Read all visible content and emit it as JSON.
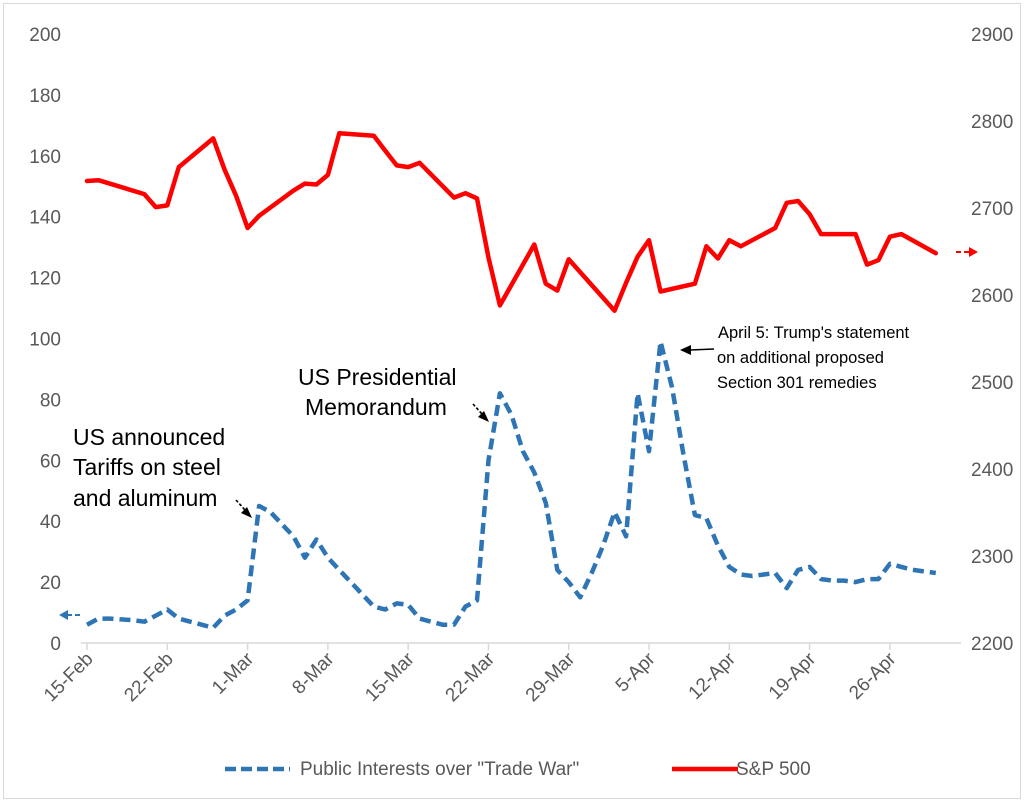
{
  "chart_data": {
    "type": "line",
    "title": "",
    "xlabel": "",
    "ylabel": "",
    "x_tick_labels": [
      "15-Feb",
      "22-Feb",
      "1-Mar",
      "8-Mar",
      "15-Mar",
      "22-Mar",
      "29-Mar",
      "5-Apr",
      "12-Apr",
      "19-Apr",
      "26-Apr"
    ],
    "y_left_ticks": [
      "0",
      "20",
      "40",
      "60",
      "80",
      "100",
      "120",
      "140",
      "160",
      "180",
      "200"
    ],
    "y_right_ticks": [
      "2200",
      "2300",
      "2400",
      "2500",
      "2600",
      "2700",
      "2800",
      "2900"
    ],
    "ylim_left": [
      0,
      200
    ],
    "ylim_right": [
      2200,
      2900
    ],
    "grid": false,
    "legend_position": "bottom",
    "series": [
      {
        "name": "Public Interests over \"Trade War\"",
        "axis": "left",
        "color": "#2e75b6",
        "style": "dashed",
        "points": [
          [
            "2018-02-15",
            6
          ],
          [
            "2018-02-16",
            8
          ],
          [
            "2018-02-17",
            8
          ],
          [
            "2018-02-19",
            7.5
          ],
          [
            "2018-02-20",
            7
          ],
          [
            "2018-02-22",
            11
          ],
          [
            "2018-02-23",
            8
          ],
          [
            "2018-02-25",
            6
          ],
          [
            "2018-02-26",
            5
          ],
          [
            "2018-02-27",
            9
          ],
          [
            "2018-02-28",
            11
          ],
          [
            "2018-03-01",
            14
          ],
          [
            "2018-03-02",
            45
          ],
          [
            "2018-03-03",
            43
          ],
          [
            "2018-03-05",
            35
          ],
          [
            "2018-03-06",
            28
          ],
          [
            "2018-03-07",
            34
          ],
          [
            "2018-03-08",
            28
          ],
          [
            "2018-03-09",
            24
          ],
          [
            "2018-03-10",
            20
          ],
          [
            "2018-03-11",
            16
          ],
          [
            "2018-03-12",
            12
          ],
          [
            "2018-03-13",
            11
          ],
          [
            "2018-03-14",
            13
          ],
          [
            "2018-03-15",
            12.5
          ],
          [
            "2018-03-16",
            8
          ],
          [
            "2018-03-17",
            7
          ],
          [
            "2018-03-18",
            6
          ],
          [
            "2018-03-19",
            6
          ],
          [
            "2018-03-20",
            12
          ],
          [
            "2018-03-21",
            14
          ],
          [
            "2018-03-22",
            60
          ],
          [
            "2018-03-23",
            82
          ],
          [
            "2018-03-24",
            75
          ],
          [
            "2018-03-25",
            63
          ],
          [
            "2018-03-26",
            56
          ],
          [
            "2018-03-27",
            46
          ],
          [
            "2018-03-28",
            24
          ],
          [
            "2018-03-29",
            20
          ],
          [
            "2018-03-30",
            15
          ],
          [
            "2018-03-31",
            23
          ],
          [
            "2018-04-01",
            32
          ],
          [
            "2018-04-02",
            43
          ],
          [
            "2018-04-03",
            35
          ],
          [
            "2018-04-04",
            82
          ],
          [
            "2018-04-05",
            63
          ],
          [
            "2018-04-06",
            99
          ],
          [
            "2018-04-07",
            84
          ],
          [
            "2018-04-08",
            62
          ],
          [
            "2018-04-09",
            42
          ],
          [
            "2018-04-10",
            41
          ],
          [
            "2018-04-11",
            32
          ],
          [
            "2018-04-12",
            25
          ],
          [
            "2018-04-13",
            22.5
          ],
          [
            "2018-04-14",
            22
          ],
          [
            "2018-04-15",
            22.5
          ],
          [
            "2018-04-16",
            23
          ],
          [
            "2018-04-17",
            18
          ],
          [
            "2018-04-18",
            24
          ],
          [
            "2018-04-19",
            25
          ],
          [
            "2018-04-20",
            21
          ],
          [
            "2018-04-21",
            20.5
          ],
          [
            "2018-04-22",
            20.5
          ],
          [
            "2018-04-23",
            20
          ],
          [
            "2018-04-24",
            21
          ],
          [
            "2018-04-25",
            21
          ],
          [
            "2018-04-26",
            26
          ],
          [
            "2018-04-27",
            25
          ],
          [
            "2018-04-28",
            24
          ],
          [
            "2018-04-29",
            23.5
          ],
          [
            "2018-04-30",
            23
          ]
        ]
      },
      {
        "name": "S&P 500",
        "axis": "right",
        "color": "#ff0000",
        "style": "solid",
        "points": [
          [
            "2018-02-15",
            2731
          ],
          [
            "2018-02-16",
            2732
          ],
          [
            "2018-02-20",
            2716
          ],
          [
            "2018-02-21",
            2701
          ],
          [
            "2018-02-22",
            2703
          ],
          [
            "2018-02-23",
            2747
          ],
          [
            "2018-02-26",
            2780
          ],
          [
            "2018-02-27",
            2744
          ],
          [
            "2018-02-28",
            2714
          ],
          [
            "2018-03-01",
            2677
          ],
          [
            "2018-03-02",
            2691
          ],
          [
            "2018-03-05",
            2720
          ],
          [
            "2018-03-06",
            2728
          ],
          [
            "2018-03-07",
            2727
          ],
          [
            "2018-03-08",
            2738
          ],
          [
            "2018-03-09",
            2786
          ],
          [
            "2018-03-12",
            2783
          ],
          [
            "2018-03-13",
            2766
          ],
          [
            "2018-03-14",
            2749
          ],
          [
            "2018-03-15",
            2747
          ],
          [
            "2018-03-16",
            2752
          ],
          [
            "2018-03-19",
            2712
          ],
          [
            "2018-03-20",
            2717
          ],
          [
            "2018-03-21",
            2711
          ],
          [
            "2018-03-22",
            2643
          ],
          [
            "2018-03-23",
            2588
          ],
          [
            "2018-03-26",
            2658
          ],
          [
            "2018-03-27",
            2613
          ],
          [
            "2018-03-28",
            2605
          ],
          [
            "2018-03-29",
            2641
          ],
          [
            "2018-04-02",
            2582
          ],
          [
            "2018-04-03",
            2614
          ],
          [
            "2018-04-04",
            2644
          ],
          [
            "2018-04-05",
            2663
          ],
          [
            "2018-04-06",
            2604
          ],
          [
            "2018-04-09",
            2613
          ],
          [
            "2018-04-10",
            2656
          ],
          [
            "2018-04-11",
            2642
          ],
          [
            "2018-04-12",
            2663
          ],
          [
            "2018-04-13",
            2656
          ],
          [
            "2018-04-16",
            2677
          ],
          [
            "2018-04-17",
            2706
          ],
          [
            "2018-04-18",
            2708
          ],
          [
            "2018-04-19",
            2693
          ],
          [
            "2018-04-20",
            2670
          ],
          [
            "2018-04-23",
            2670
          ],
          [
            "2018-04-24",
            2635
          ],
          [
            "2018-04-25",
            2640
          ],
          [
            "2018-04-26",
            2667
          ],
          [
            "2018-04-27",
            2670
          ],
          [
            "2018-04-30",
            2648
          ]
        ]
      }
    ],
    "annotations": [
      {
        "lines": [
          "US announced",
          "Tariffs on steel",
          "and aluminum"
        ]
      },
      {
        "lines": [
          "US Presidential",
          "Memorandum"
        ]
      },
      {
        "lines": [
          "April 5: Trump's statement",
          "on additional proposed",
          "Section 301 remedies"
        ]
      }
    ]
  }
}
